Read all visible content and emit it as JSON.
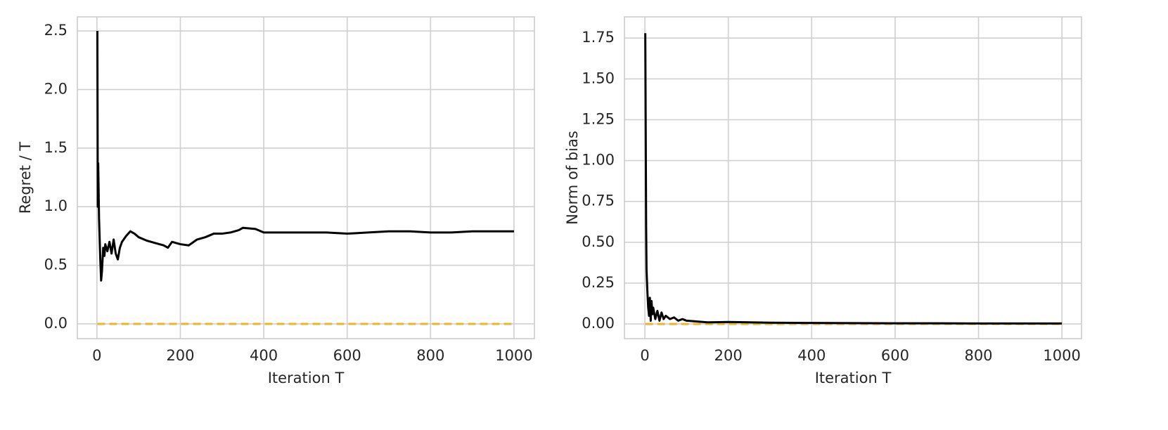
{
  "chart_data": [
    {
      "type": "line",
      "xlabel": "Iteration T",
      "ylabel": "Regret / T",
      "xlim": [
        -47,
        1049
      ],
      "xticks": [
        0,
        200,
        400,
        600,
        800,
        1000
      ],
      "ylim": [
        -0.126,
        2.62
      ],
      "yticks": [
        {
          "value": 0,
          "label": "0.0"
        },
        0.5,
        {
          "value": 1,
          "label": "1.0"
        },
        1.5,
        {
          "value": 2,
          "label": "2.0"
        },
        2.5
      ],
      "grid": true,
      "series": [
        {
          "color": "#000000",
          "style": "solid",
          "x": [
            1,
            2,
            3,
            5,
            8,
            10,
            12,
            15,
            18,
            20,
            25,
            30,
            35,
            40,
            45,
            50,
            55,
            60,
            70,
            80,
            90,
            100,
            120,
            140,
            160,
            170,
            180,
            200,
            220,
            240,
            260,
            280,
            300,
            320,
            340,
            350,
            380,
            400,
            450,
            500,
            550,
            600,
            650,
            700,
            750,
            800,
            850,
            900,
            950,
            1000
          ],
          "values": [
            2.5,
            1.0,
            1.37,
            0.9,
            0.55,
            0.37,
            0.45,
            0.65,
            0.58,
            0.68,
            0.62,
            0.7,
            0.6,
            0.72,
            0.6,
            0.55,
            0.65,
            0.7,
            0.75,
            0.79,
            0.77,
            0.74,
            0.71,
            0.69,
            0.67,
            0.65,
            0.7,
            0.68,
            0.67,
            0.72,
            0.74,
            0.77,
            0.77,
            0.78,
            0.8,
            0.82,
            0.81,
            0.78,
            0.78,
            0.78,
            0.78,
            0.77,
            0.78,
            0.79,
            0.79,
            0.78,
            0.78,
            0.79,
            0.79,
            0.79
          ]
        },
        {
          "color": "#e8b72a",
          "style": "dashed",
          "x": [
            1,
            1000
          ],
          "values": [
            0,
            0
          ]
        }
      ]
    },
    {
      "type": "line",
      "xlabel": "Iteration T",
      "ylabel": "Norm of bias",
      "xlim": [
        -49,
        1047
      ],
      "xticks": [
        0,
        200,
        400,
        600,
        800,
        1000
      ],
      "ylim": [
        -0.09,
        1.88
      ],
      "yticks": [
        {
          "value": 0,
          "label": "0.00"
        },
        0.25,
        {
          "value": 0.5,
          "label": "0.50"
        },
        0.75,
        {
          "value": 1,
          "label": "1.00"
        },
        1.25,
        {
          "value": 1.5,
          "label": "1.50"
        },
        1.75
      ],
      "grid": true,
      "series": [
        {
          "color": "#000000",
          "style": "solid",
          "x": [
            1,
            2,
            3,
            4,
            6,
            8,
            10,
            12,
            14,
            16,
            18,
            20,
            25,
            30,
            35,
            40,
            45,
            50,
            60,
            70,
            80,
            90,
            100,
            150,
            200,
            250,
            300,
            400,
            500,
            600,
            700,
            800,
            900,
            1000
          ],
          "values": [
            1.78,
            1.2,
            0.6,
            0.33,
            0.2,
            0.1,
            0.05,
            0.16,
            0.02,
            0.14,
            0.06,
            0.1,
            0.03,
            0.08,
            0.02,
            0.07,
            0.03,
            0.05,
            0.03,
            0.04,
            0.02,
            0.03,
            0.02,
            0.01,
            0.012,
            0.01,
            0.008,
            0.006,
            0.005,
            0.004,
            0.004,
            0.003,
            0.003,
            0.003
          ]
        },
        {
          "color": "#e8b72a",
          "style": "dashed",
          "x": [
            1,
            1000
          ],
          "values": [
            0,
            0
          ]
        }
      ]
    }
  ]
}
